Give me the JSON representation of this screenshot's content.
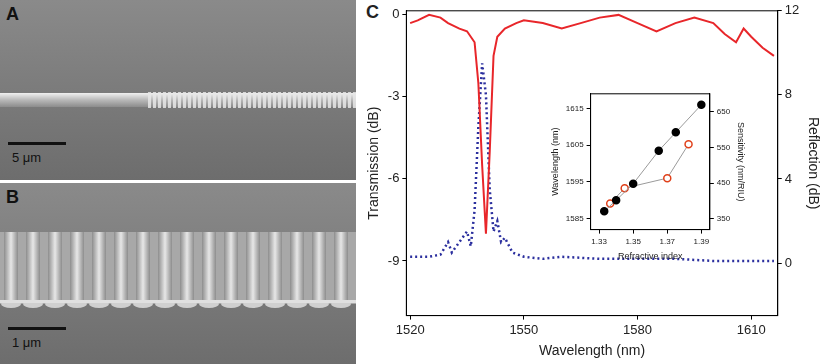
{
  "panels": [
    {
      "label": "A",
      "scale_bar": "5 μm"
    },
    {
      "label": "B",
      "scale_bar": "1 μm"
    },
    {
      "label": "C"
    }
  ],
  "chart_data": [
    {
      "type": "line",
      "x_label": "Wavelength (nm)",
      "y_label": "Transmission (dB)",
      "y2_label": "Reflection (dB)",
      "xlim": [
        1519,
        1617
      ],
      "xticks": [
        1520,
        1550,
        1580,
        1610
      ],
      "ylim": [
        -11,
        0.15
      ],
      "yticks": [
        -9,
        -6,
        -3,
        0
      ],
      "y2lim": [
        -2.5,
        12
      ],
      "y2ticks": [
        0,
        4,
        8,
        12
      ],
      "grid": false,
      "series": [
        {
          "color": "#e8262a",
          "line_style": "solid",
          "x": [
            1520,
            1522,
            1525,
            1528,
            1530,
            1533,
            1535,
            1537,
            1538,
            1539,
            1540,
            1541,
            1542,
            1543,
            1545,
            1548,
            1550,
            1555,
            1560,
            1565,
            1570,
            1575,
            1580,
            1585,
            1590,
            1595,
            1600,
            1603,
            1606,
            1608,
            1610,
            1613,
            1616
          ],
          "values": [
            -0.3,
            -0.2,
            0.0,
            -0.1,
            -0.3,
            -0.5,
            -0.6,
            -1.0,
            -2.5,
            -5.5,
            -8.0,
            -5.0,
            -1.5,
            -0.8,
            -0.5,
            -0.3,
            -0.2,
            -0.3,
            -0.5,
            -0.3,
            -0.1,
            0.0,
            -0.3,
            -0.6,
            -0.3,
            -0.1,
            -0.3,
            -0.7,
            -1.0,
            -0.5,
            -0.8,
            -1.2,
            -1.5
          ]
        },
        {
          "color": "#2b2f9e",
          "line_style": "dotted",
          "axis": "y2",
          "x": [
            1520,
            1525,
            1528,
            1530,
            1531,
            1533,
            1535,
            1536,
            1537,
            1538,
            1539,
            1540,
            1541,
            1542,
            1543,
            1544,
            1545,
            1547,
            1550,
            1555,
            1560,
            1570,
            1580,
            1590,
            1600,
            1610,
            1616
          ],
          "values": [
            0.3,
            0.3,
            0.4,
            1.0,
            0.5,
            1.0,
            1.5,
            0.8,
            2.5,
            6.5,
            9.5,
            8.0,
            3.5,
            1.5,
            2.0,
            1.0,
            1.2,
            0.5,
            0.3,
            0.2,
            0.3,
            0.2,
            0.2,
            0.2,
            0.1,
            0.1,
            0.1
          ]
        }
      ]
    },
    {
      "type": "line",
      "x_label": "Refractive index",
      "y_label": "Wavelength (nm)",
      "y2_label": "Sensitivity (nm/RIU)",
      "xlim": [
        1.325,
        1.395
      ],
      "xticks": [
        1.33,
        1.35,
        1.37,
        1.39
      ],
      "ylim": [
        1582,
        1619
      ],
      "yticks": [
        1585,
        1595,
        1605,
        1615
      ],
      "y2lim": [
        320,
        700
      ],
      "y2ticks": [
        350,
        450,
        550,
        650
      ],
      "grid": false,
      "series": [
        {
          "color": "#000000",
          "marker": "circle",
          "line_style": "solid",
          "x": [
            1.333,
            1.34,
            1.35,
            1.365,
            1.375,
            1.39
          ],
          "values": [
            1587,
            1590,
            1594.5,
            1603.5,
            1608.5,
            1616
          ]
        },
        {
          "color": "#e0401a",
          "marker": "open circle",
          "line_style": "solid",
          "axis": "y2",
          "x": [
            1.3365,
            1.345,
            1.37,
            1.3825
          ],
          "values": [
            393,
            436,
            464,
            559
          ]
        }
      ]
    }
  ]
}
